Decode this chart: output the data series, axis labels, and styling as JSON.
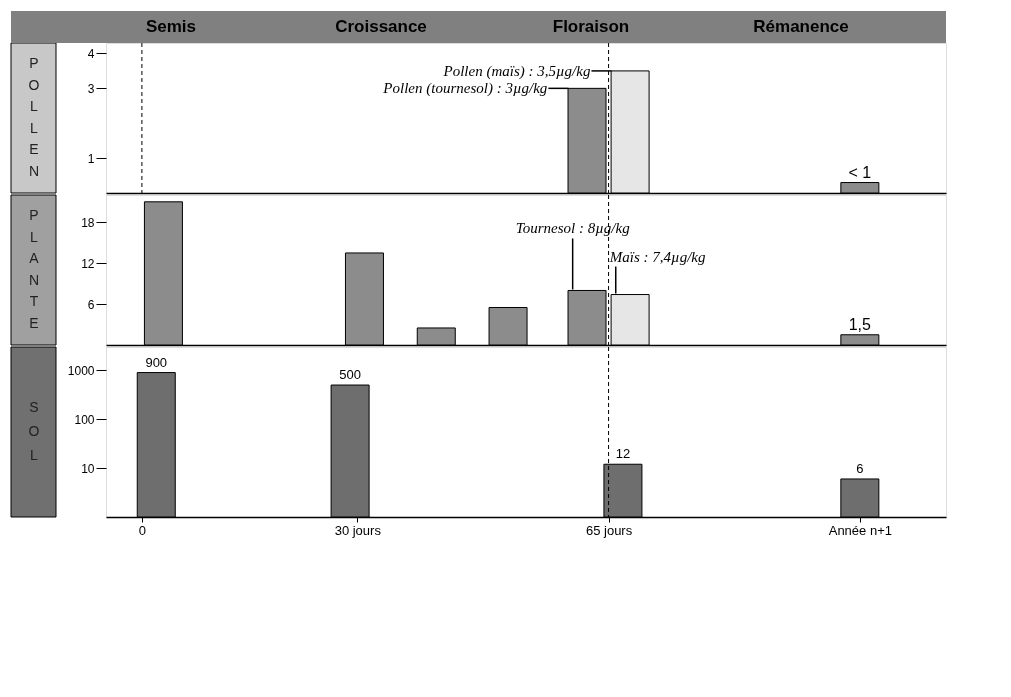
{
  "chart_data": [
    {
      "type": "bar",
      "ylabel": "POLLEN",
      "x": [
        62,
        68,
        100
      ],
      "values": [
        3,
        3.5,
        0.3
      ],
      "colors": [
        "#8c8c8c",
        "#e6e6e6",
        "#8c8c8c"
      ],
      "value_labels": [
        null,
        null,
        "< 1"
      ],
      "xlim": [
        -5,
        112
      ],
      "ylim": [
        0,
        4.3
      ],
      "yticks": [
        1,
        3,
        4
      ],
      "tick_labels": "y",
      "annotations": [
        "Semis",
        "Croissance",
        "Floraison",
        "Rémanence",
        {
          "text": "Pollen (maïs) : 3,5µg/kg",
          "x": 65.4,
          "y": 3.5
        },
        {
          "text": "Pollen (tournesol) : 3µg/kg",
          "x": 59.4,
          "y": 3
        }
      ],
      "ref_lines": [
        {
          "axis": "x",
          "value": 0,
          "line_style": "dashed"
        },
        {
          "axis": "x",
          "value": 65,
          "line_style": "dashed"
        }
      ]
    },
    {
      "type": "bar",
      "ylabel": "PLANTE",
      "x": [
        3,
        31,
        41,
        51,
        62,
        68,
        100
      ],
      "values": [
        21,
        13.5,
        2.5,
        5.5,
        8,
        7.4,
        1.5
      ],
      "colors": [
        "#8c8c8c",
        "#8c8c8c",
        "#8c8c8c",
        "#8c8c8c",
        "#8c8c8c",
        "#e6e6e6",
        "#8c8c8c"
      ],
      "value_labels": [
        null,
        null,
        null,
        null,
        null,
        null,
        "1,5"
      ],
      "xlim": [
        -5,
        112
      ],
      "ylim": [
        0,
        22
      ],
      "yticks": [
        6,
        12,
        18
      ],
      "tick_labels": "y",
      "annotations": [
        {
          "text": "Tournesol : 8µg/kg",
          "x": 60,
          "y": 8
        },
        {
          "text": "Maïs : 7,4µg/kg",
          "x": 66,
          "y": 7.4
        }
      ],
      "ref_lines": [
        {
          "axis": "x",
          "value": 65,
          "line_style": "dashed"
        }
      ]
    },
    {
      "type": "bar",
      "ylabel": "SOL",
      "x": [
        2,
        29,
        67,
        100
      ],
      "values": [
        900,
        500,
        12,
        6
      ],
      "colors": [
        "#6e6e6e",
        "#6e6e6e",
        "#6e6e6e",
        "#6e6e6e"
      ],
      "data_labels": true,
      "log": true,
      "xlim": [
        -5,
        112
      ],
      "ylim": [
        1,
        3000
      ],
      "yticks": [
        10,
        100,
        1000
      ],
      "xticks": [
        0,
        {
          "value": 30,
          "label": "30 jours"
        },
        {
          "value": 65,
          "label": "65 jours"
        },
        {
          "value": 100,
          "label": "Année n+1"
        }
      ],
      "ref_lines": [
        {
          "axis": "x",
          "value": 65,
          "line_style": "dashed"
        }
      ]
    }
  ]
}
